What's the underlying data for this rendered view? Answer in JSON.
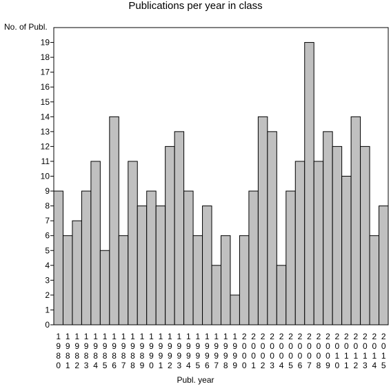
{
  "chart_data": {
    "type": "bar",
    "title": "Publications per year in class",
    "ylabel": "No. of Publ.",
    "xlabel": "Publ. year",
    "ylim": [
      0,
      20
    ],
    "yticks": [
      0,
      1,
      2,
      3,
      4,
      5,
      6,
      7,
      8,
      9,
      10,
      11,
      12,
      13,
      14,
      15,
      16,
      17,
      18,
      19
    ],
    "grid": false,
    "categories": [
      "1980",
      "1981",
      "1982",
      "1983",
      "1984",
      "1985",
      "1986",
      "1987",
      "1988",
      "1989",
      "1990",
      "1991",
      "1992",
      "1993",
      "1994",
      "1995",
      "1996",
      "1997",
      "1998",
      "1999",
      "2000",
      "2001",
      "2002",
      "2003",
      "2004",
      "2005",
      "2006",
      "2007",
      "2008",
      "2009",
      "2010",
      "2011",
      "2012",
      "2013",
      "2014",
      "2015"
    ],
    "values": [
      9,
      6,
      7,
      9,
      11,
      5,
      14,
      6,
      11,
      8,
      9,
      8,
      12,
      13,
      9,
      6,
      8,
      4,
      6,
      2,
      6,
      9,
      14,
      13,
      4,
      9,
      11,
      19,
      11,
      13,
      12,
      10,
      14,
      12,
      6,
      8
    ],
    "colors": {
      "bar_fill": "#c0c0c0",
      "bar_stroke": "#000000",
      "axis": "#000000"
    }
  }
}
